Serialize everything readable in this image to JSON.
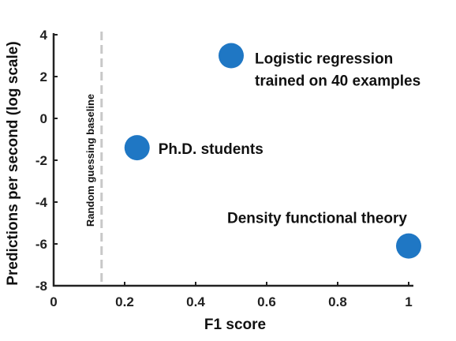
{
  "chart_data": {
    "type": "scatter",
    "xlabel": "F1 score",
    "ylabel": "Predictions per second (log scale)",
    "xlim": [
      0,
      1
    ],
    "ylim": [
      -8,
      4
    ],
    "x_ticks": [
      0,
      0.2,
      0.4,
      0.6,
      0.8,
      1
    ],
    "x_tick_labels": [
      "0",
      "0.2",
      "0.4",
      "0.6",
      "0.8",
      "1"
    ],
    "y_ticks": [
      4,
      2,
      0,
      -2,
      -4,
      -6,
      -8
    ],
    "y_tick_labels": [
      "4",
      "2",
      "0",
      "-2",
      "-4",
      "-6",
      "-8"
    ],
    "grid": false,
    "point_color": "#1f77c4",
    "baseline": {
      "x": 0.135,
      "label": "Random guessing baseline",
      "color": "#c8c8c8"
    },
    "points": [
      {
        "x": 0.5,
        "y": 3.0,
        "label_lines": [
          "Logistic regression",
          "trained on 40 examples"
        ]
      },
      {
        "x": 0.235,
        "y": -1.4,
        "label_lines": [
          "Ph.D. students"
        ]
      },
      {
        "x": 1.0,
        "y": -6.1,
        "label_lines": [
          "Density functional theory"
        ]
      }
    ]
  }
}
